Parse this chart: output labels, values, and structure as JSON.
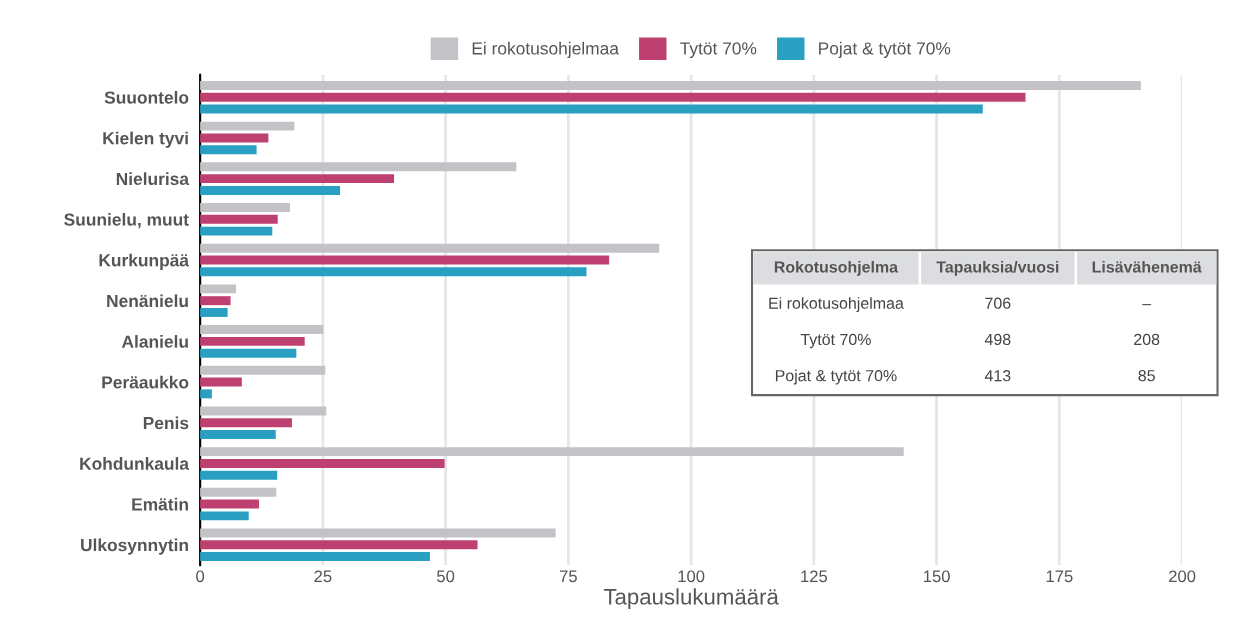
{
  "chart_data": {
    "type": "bar",
    "orientation": "horizontal",
    "xlabel": "Tapauslukumäärä",
    "categories": [
      "Suuontelo",
      "Kielen tyvi",
      "Nielurisa",
      "Suunielu, muut",
      "Kurkunpää",
      "Nenänielu",
      "Alanielu",
      "Peräaukko",
      "Penis",
      "Kohdunkaula",
      "Emätin",
      "Ulkosynnytin"
    ],
    "series": [
      {
        "name": "Ei rokotusohjelmaa",
        "color": "#c3c2c7",
        "values": [
          191.6,
          19.2,
          64.4,
          18.3,
          93.5,
          7.3,
          25.1,
          25.5,
          25.7,
          143.3,
          15.5,
          72.4
        ]
      },
      {
        "name": "Tytöt 70%",
        "color": "#bd4070",
        "values": [
          168.1,
          13.9,
          39.5,
          15.8,
          83.3,
          6.2,
          21.3,
          8.5,
          18.7,
          49.8,
          12.0,
          56.5
        ]
      },
      {
        "name": "Pojat & tytöt 70%",
        "color": "#29a0c2",
        "values": [
          159.4,
          11.5,
          28.5,
          14.7,
          78.7,
          5.6,
          19.6,
          2.4,
          15.4,
          15.7,
          9.9,
          46.8
        ]
      }
    ],
    "xlim": [
      0,
      200
    ],
    "xticks": [
      0,
      25,
      50,
      75,
      100,
      125,
      150,
      175,
      200
    ],
    "grid": "x",
    "legend": "top",
    "annotations": [
      "Rokotusohjelma",
      "Tapauksia/vuosi",
      "Lisävähenemä",
      "Ei rokotusohjelmaa",
      "706",
      "–",
      "Tytöt 70%",
      "498",
      "208",
      "Pojat & tytöt 70%",
      "413",
      "85"
    ]
  }
}
